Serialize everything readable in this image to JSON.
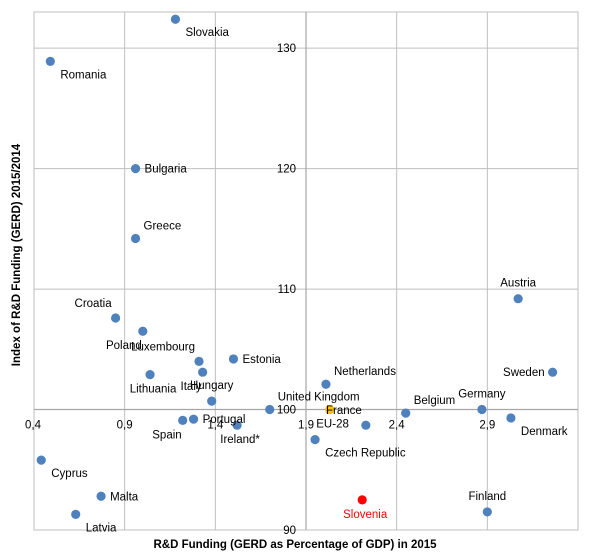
{
  "chart_data": {
    "type": "scatter",
    "title": "",
    "xlabel": "R&D Funding  (GERD as Percentage of GDP) in 2015",
    "ylabel": "Index of R&D  Funding (GERD) 2015/2014",
    "xlim": [
      0.4,
      3.4
    ],
    "ylim": [
      90,
      133
    ],
    "x_ticks": [
      0.4,
      0.9,
      1.4,
      1.9,
      2.4,
      2.9
    ],
    "x_tick_labels": [
      "0,4",
      "0,9",
      "1,4",
      "1,9",
      "2,4",
      "2,9"
    ],
    "y_ticks": [
      90,
      100,
      110,
      120,
      130
    ],
    "y_tick_labels": [
      "90",
      "100",
      "110",
      "120",
      "130"
    ],
    "grid": true,
    "axes_cross": {
      "x": 1.9,
      "y": 100
    },
    "colors": {
      "default": "#4f81bd",
      "eu": "#ffc000",
      "highlight": "#ff0000",
      "grid": "#bfbfbf",
      "axis": "#a6a6a6"
    },
    "points": [
      {
        "label": "Slovakia",
        "x": 1.18,
        "y": 132.4,
        "color": "default",
        "anchor": "right-below"
      },
      {
        "label": "Romania",
        "x": 0.49,
        "y": 128.9,
        "color": "default",
        "anchor": "right-below"
      },
      {
        "label": "Bulgaria",
        "x": 0.96,
        "y": 120.0,
        "color": "default",
        "anchor": "right"
      },
      {
        "label": "Greece",
        "x": 0.96,
        "y": 114.2,
        "color": "default",
        "anchor": "right-above"
      },
      {
        "label": "Austria",
        "x": 3.07,
        "y": 109.2,
        "color": "default",
        "anchor": "above"
      },
      {
        "label": "Croatia",
        "x": 0.85,
        "y": 107.6,
        "color": "default",
        "anchor": "left-above"
      },
      {
        "label": "Poland",
        "x": 1.0,
        "y": 106.5,
        "color": "default",
        "anchor": "left-below"
      },
      {
        "label": "Luxembourg",
        "x": 1.31,
        "y": 104.0,
        "color": "default",
        "anchor": "left-above"
      },
      {
        "label": "Estonia",
        "x": 1.5,
        "y": 104.2,
        "color": "default",
        "anchor": "right"
      },
      {
        "label": "Italy",
        "x": 1.33,
        "y": 103.1,
        "color": "default",
        "anchor": "left-below"
      },
      {
        "label": "Lithuania",
        "x": 1.04,
        "y": 102.9,
        "color": "default",
        "anchor": "below"
      },
      {
        "label": "Sweden",
        "x": 3.26,
        "y": 103.1,
        "color": "default",
        "anchor": "left"
      },
      {
        "label": "Netherlands",
        "x": 2.01,
        "y": 102.1,
        "color": "default",
        "anchor": "right-above"
      },
      {
        "label": "Hungary",
        "x": 1.38,
        "y": 100.7,
        "color": "default",
        "anchor": "above"
      },
      {
        "label": "United Kingdom",
        "x": 1.7,
        "y": 100.0,
        "color": "default",
        "anchor": "right-above"
      },
      {
        "label": "Germany",
        "x": 2.87,
        "y": 100.0,
        "color": "default",
        "anchor": "above"
      },
      {
        "label": "Belgium",
        "x": 2.45,
        "y": 99.7,
        "color": "default",
        "anchor": "right-above"
      },
      {
        "label": "EU-28",
        "x": 2.03,
        "y": 100.0,
        "color": "eu",
        "anchor": "below"
      },
      {
        "label": "Portugal",
        "x": 1.28,
        "y": 99.2,
        "color": "default",
        "anchor": "right"
      },
      {
        "label": "Spain",
        "x": 1.22,
        "y": 99.1,
        "color": "default",
        "anchor": "left-below"
      },
      {
        "label": "Denmark",
        "x": 3.03,
        "y": 99.3,
        "color": "default",
        "anchor": "right-below"
      },
      {
        "label": "France",
        "x": 2.23,
        "y": 98.7,
        "color": "default",
        "anchor": "left-above"
      },
      {
        "label": "Ireland*",
        "x": 1.52,
        "y": 98.7,
        "color": "default",
        "anchor": "below"
      },
      {
        "label": "Czech Republic",
        "x": 1.95,
        "y": 97.5,
        "color": "default",
        "anchor": "right-below"
      },
      {
        "label": "Cyprus",
        "x": 0.44,
        "y": 95.8,
        "color": "default",
        "anchor": "right-below"
      },
      {
        "label": "Malta",
        "x": 0.77,
        "y": 92.8,
        "color": "default",
        "anchor": "right"
      },
      {
        "label": "Latvia",
        "x": 0.63,
        "y": 91.3,
        "color": "default",
        "anchor": "right-below"
      },
      {
        "label": "Slovenia",
        "x": 2.21,
        "y": 92.5,
        "color": "highlight",
        "anchor": "below"
      },
      {
        "label": "Finland",
        "x": 2.9,
        "y": 91.5,
        "color": "default",
        "anchor": "above"
      }
    ]
  }
}
